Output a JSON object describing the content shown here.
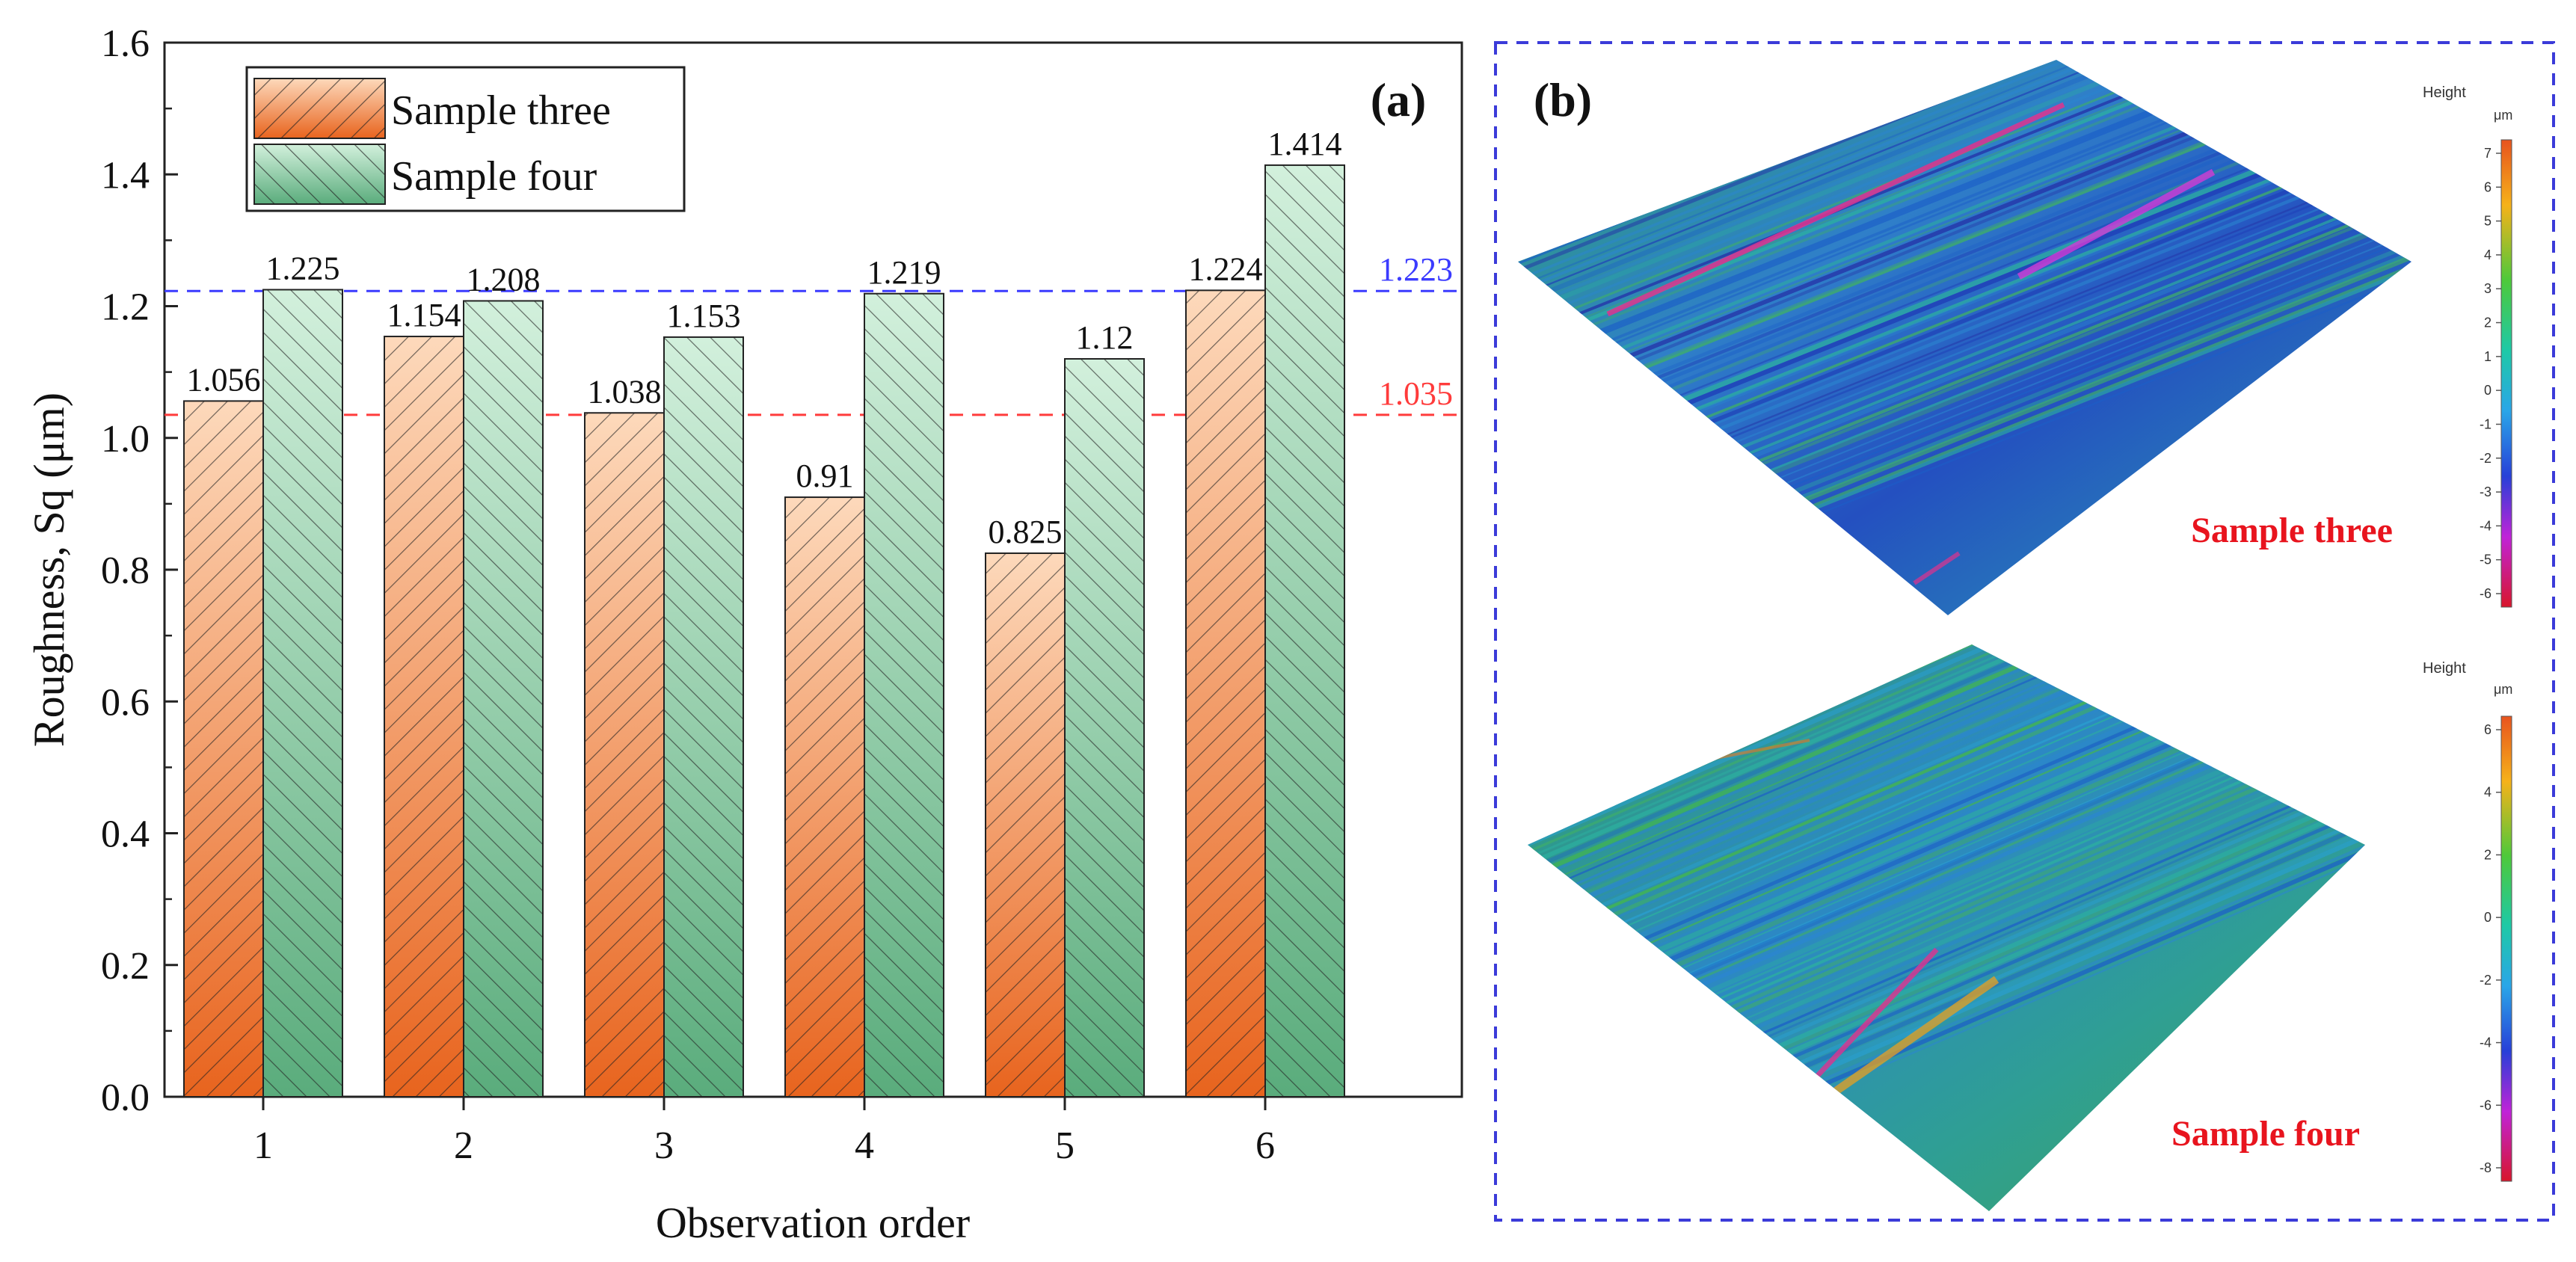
{
  "chart_data": {
    "type": "bar",
    "panel_label": "(a)",
    "xlabel": "Observation order",
    "ylabel": "Roughness, Sq (μm)",
    "ylim": [
      0.0,
      1.6
    ],
    "yticks": [
      "0.0",
      "0.2",
      "0.4",
      "0.6",
      "0.8",
      "1.0",
      "1.2",
      "1.4",
      "1.6"
    ],
    "ytick_values": [
      0.0,
      0.2,
      0.4,
      0.6,
      0.8,
      1.0,
      1.2,
      1.4,
      1.6
    ],
    "categories": [
      "1",
      "2",
      "3",
      "4",
      "5",
      "6"
    ],
    "series": [
      {
        "name": "Sample three",
        "color": "#e8641e",
        "light_color": "#fbd4b3",
        "values": [
          1.056,
          1.154,
          1.038,
          0.91,
          0.825,
          1.224
        ],
        "labels": [
          "1.056",
          "1.154",
          "1.038",
          "0.91",
          "0.825",
          "1.224"
        ]
      },
      {
        "name": "Sample four",
        "color": "#5aac7c",
        "light_color": "#cdeed9",
        "values": [
          1.225,
          1.208,
          1.153,
          1.219,
          1.12,
          1.414
        ],
        "labels": [
          "1.225",
          "1.208",
          "1.153",
          "1.219",
          "1.12",
          "1.414"
        ]
      }
    ],
    "reference_lines": [
      {
        "value": 1.223,
        "label": "1.223",
        "color": "#3b3bff"
      },
      {
        "value": 1.035,
        "label": "1.035",
        "color": "#ff3b3b"
      }
    ],
    "legend_position": "top-left",
    "grid": false
  },
  "panel_b": {
    "panel_label": "(b)",
    "maps": [
      {
        "label": "Sample three",
        "colorbar_title": "Height",
        "colorbar_unit": "μm",
        "ticks": [
          "7",
          "6",
          "5",
          "4",
          "3",
          "2",
          "1",
          "0",
          "-1",
          "-2",
          "-3",
          "-4",
          "-5",
          "-6"
        ]
      },
      {
        "label": "Sample four",
        "colorbar_title": "Height",
        "colorbar_unit": "μm",
        "ticks": [
          "6",
          "4",
          "2",
          "0",
          "-2",
          "-4",
          "-6",
          "-8"
        ]
      }
    ],
    "label_color": "#e8141e",
    "border_color": "#3b3bd9"
  }
}
